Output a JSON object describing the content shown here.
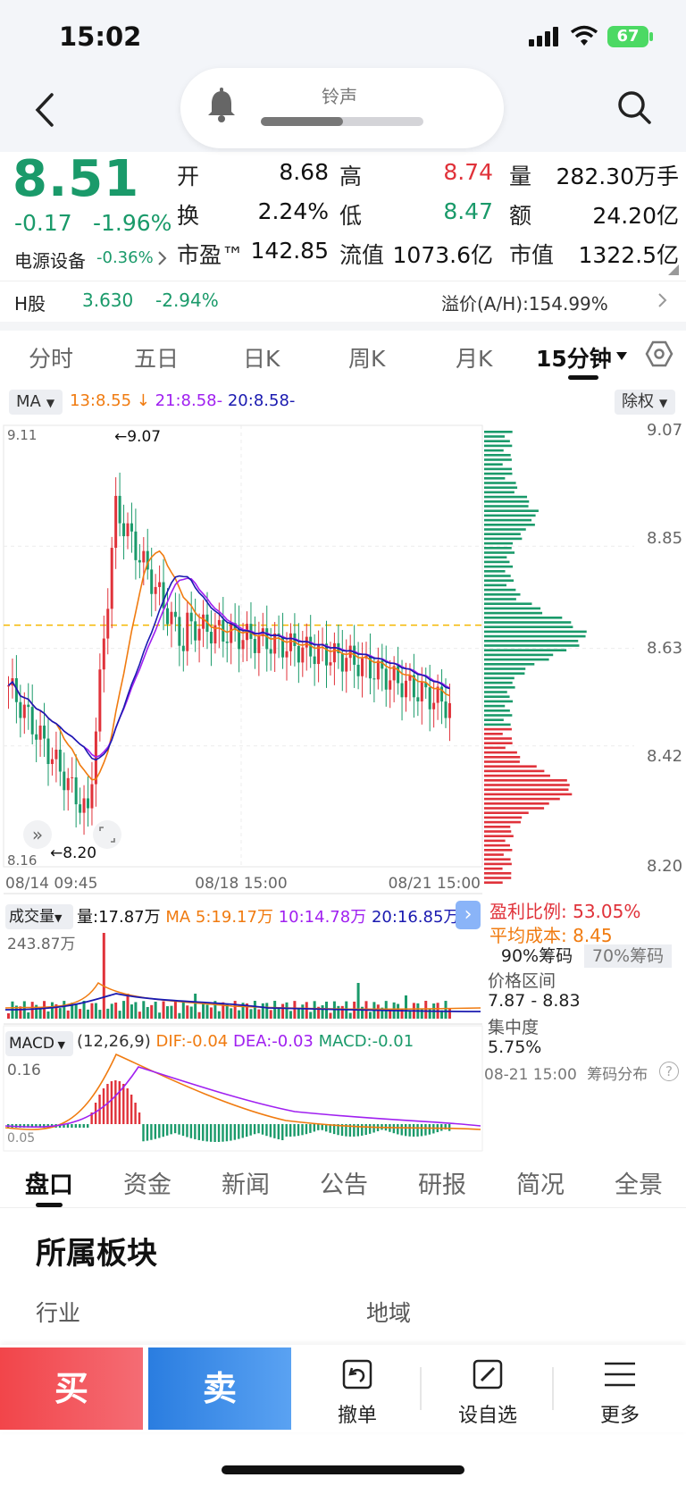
{
  "status": {
    "time": "15:02",
    "battery": "67"
  },
  "ringtone": {
    "label": "铃声",
    "level": 0.5
  },
  "quote": {
    "price": "8.51",
    "change": "-0.17",
    "change_pct": "-1.96%",
    "sector": "电源设备",
    "sector_pct": "-0.36%",
    "fields": [
      {
        "label": "开",
        "value": "8.68",
        "color": "#111"
      },
      {
        "label": "高",
        "value": "8.74",
        "color": "#e0323a"
      },
      {
        "label": "量",
        "value": "282.30万手",
        "color": "#111"
      },
      {
        "label": "换",
        "value": "2.24%",
        "color": "#111"
      },
      {
        "label": "低",
        "value": "8.47",
        "color": "#1a9a6a"
      },
      {
        "label": "额",
        "value": "24.20亿",
        "color": "#111"
      },
      {
        "label": "市盈™",
        "value": "142.85",
        "color": "#111"
      },
      {
        "label": "流值",
        "value": "1073.6亿",
        "color": "#111"
      },
      {
        "label": "市值",
        "value": "1322.5亿",
        "color": "#111"
      }
    ]
  },
  "hshare": {
    "label": "H股",
    "price": "3.630",
    "pct": "-2.94%",
    "premium": "溢价(A/H):154.99%"
  },
  "tabs": [
    "分时",
    "五日",
    "日K",
    "周K",
    "月K",
    "15分钟"
  ],
  "ma": {
    "label": "MA",
    "ma13": "13:8.55",
    "ma21": "21:8.58-",
    "ma20": "20:8.58-",
    "fq": "除权"
  },
  "kchart": {
    "ylabels_right": [
      "9.07",
      "8.85",
      "8.63",
      "8.42",
      "8.20"
    ],
    "y_top_left": "9.11",
    "y_bottom_left": "8.16",
    "high_mark": "←9.07",
    "low_mark": "←8.20",
    "xlabels": [
      "08/14 09:45",
      "08/18 15:00",
      "08/21 15:00"
    ]
  },
  "volume": {
    "label": "成交量",
    "vol": "量:17.87万",
    "ma5": "MA 5:19.17万",
    "ma10": "10:14.78万",
    "ma20": "20:16.85万",
    "max": "243.87万"
  },
  "macd": {
    "label": "MACD",
    "params": "(12,26,9)",
    "dif": "DIF:-0.04",
    "dea": "DEA:-0.03",
    "macd": "MACD:-0.01",
    "top": "0.16",
    "bottom": "0.05"
  },
  "chips": {
    "profit_label": "盈利比例:",
    "profit": "53.05%",
    "cost_label": "平均成本:",
    "cost": "8.45",
    "b90": "90%筹码",
    "b70": "70%筹码",
    "range_label": "价格区间",
    "range": "7.87 - 8.83",
    "conc_label": "集中度",
    "conc": "5.75%",
    "date": "08-21 15:00",
    "dist": "筹码分布"
  },
  "subtabs": [
    "盘口",
    "资金",
    "新闻",
    "公告",
    "研报",
    "简况",
    "全景"
  ],
  "section": {
    "title": "所属板块",
    "industry": "行业",
    "region": "地域"
  },
  "bottom": {
    "buy": "买",
    "sell": "卖",
    "cancel": "撤单",
    "watch": "设自选",
    "more": "更多"
  }
}
